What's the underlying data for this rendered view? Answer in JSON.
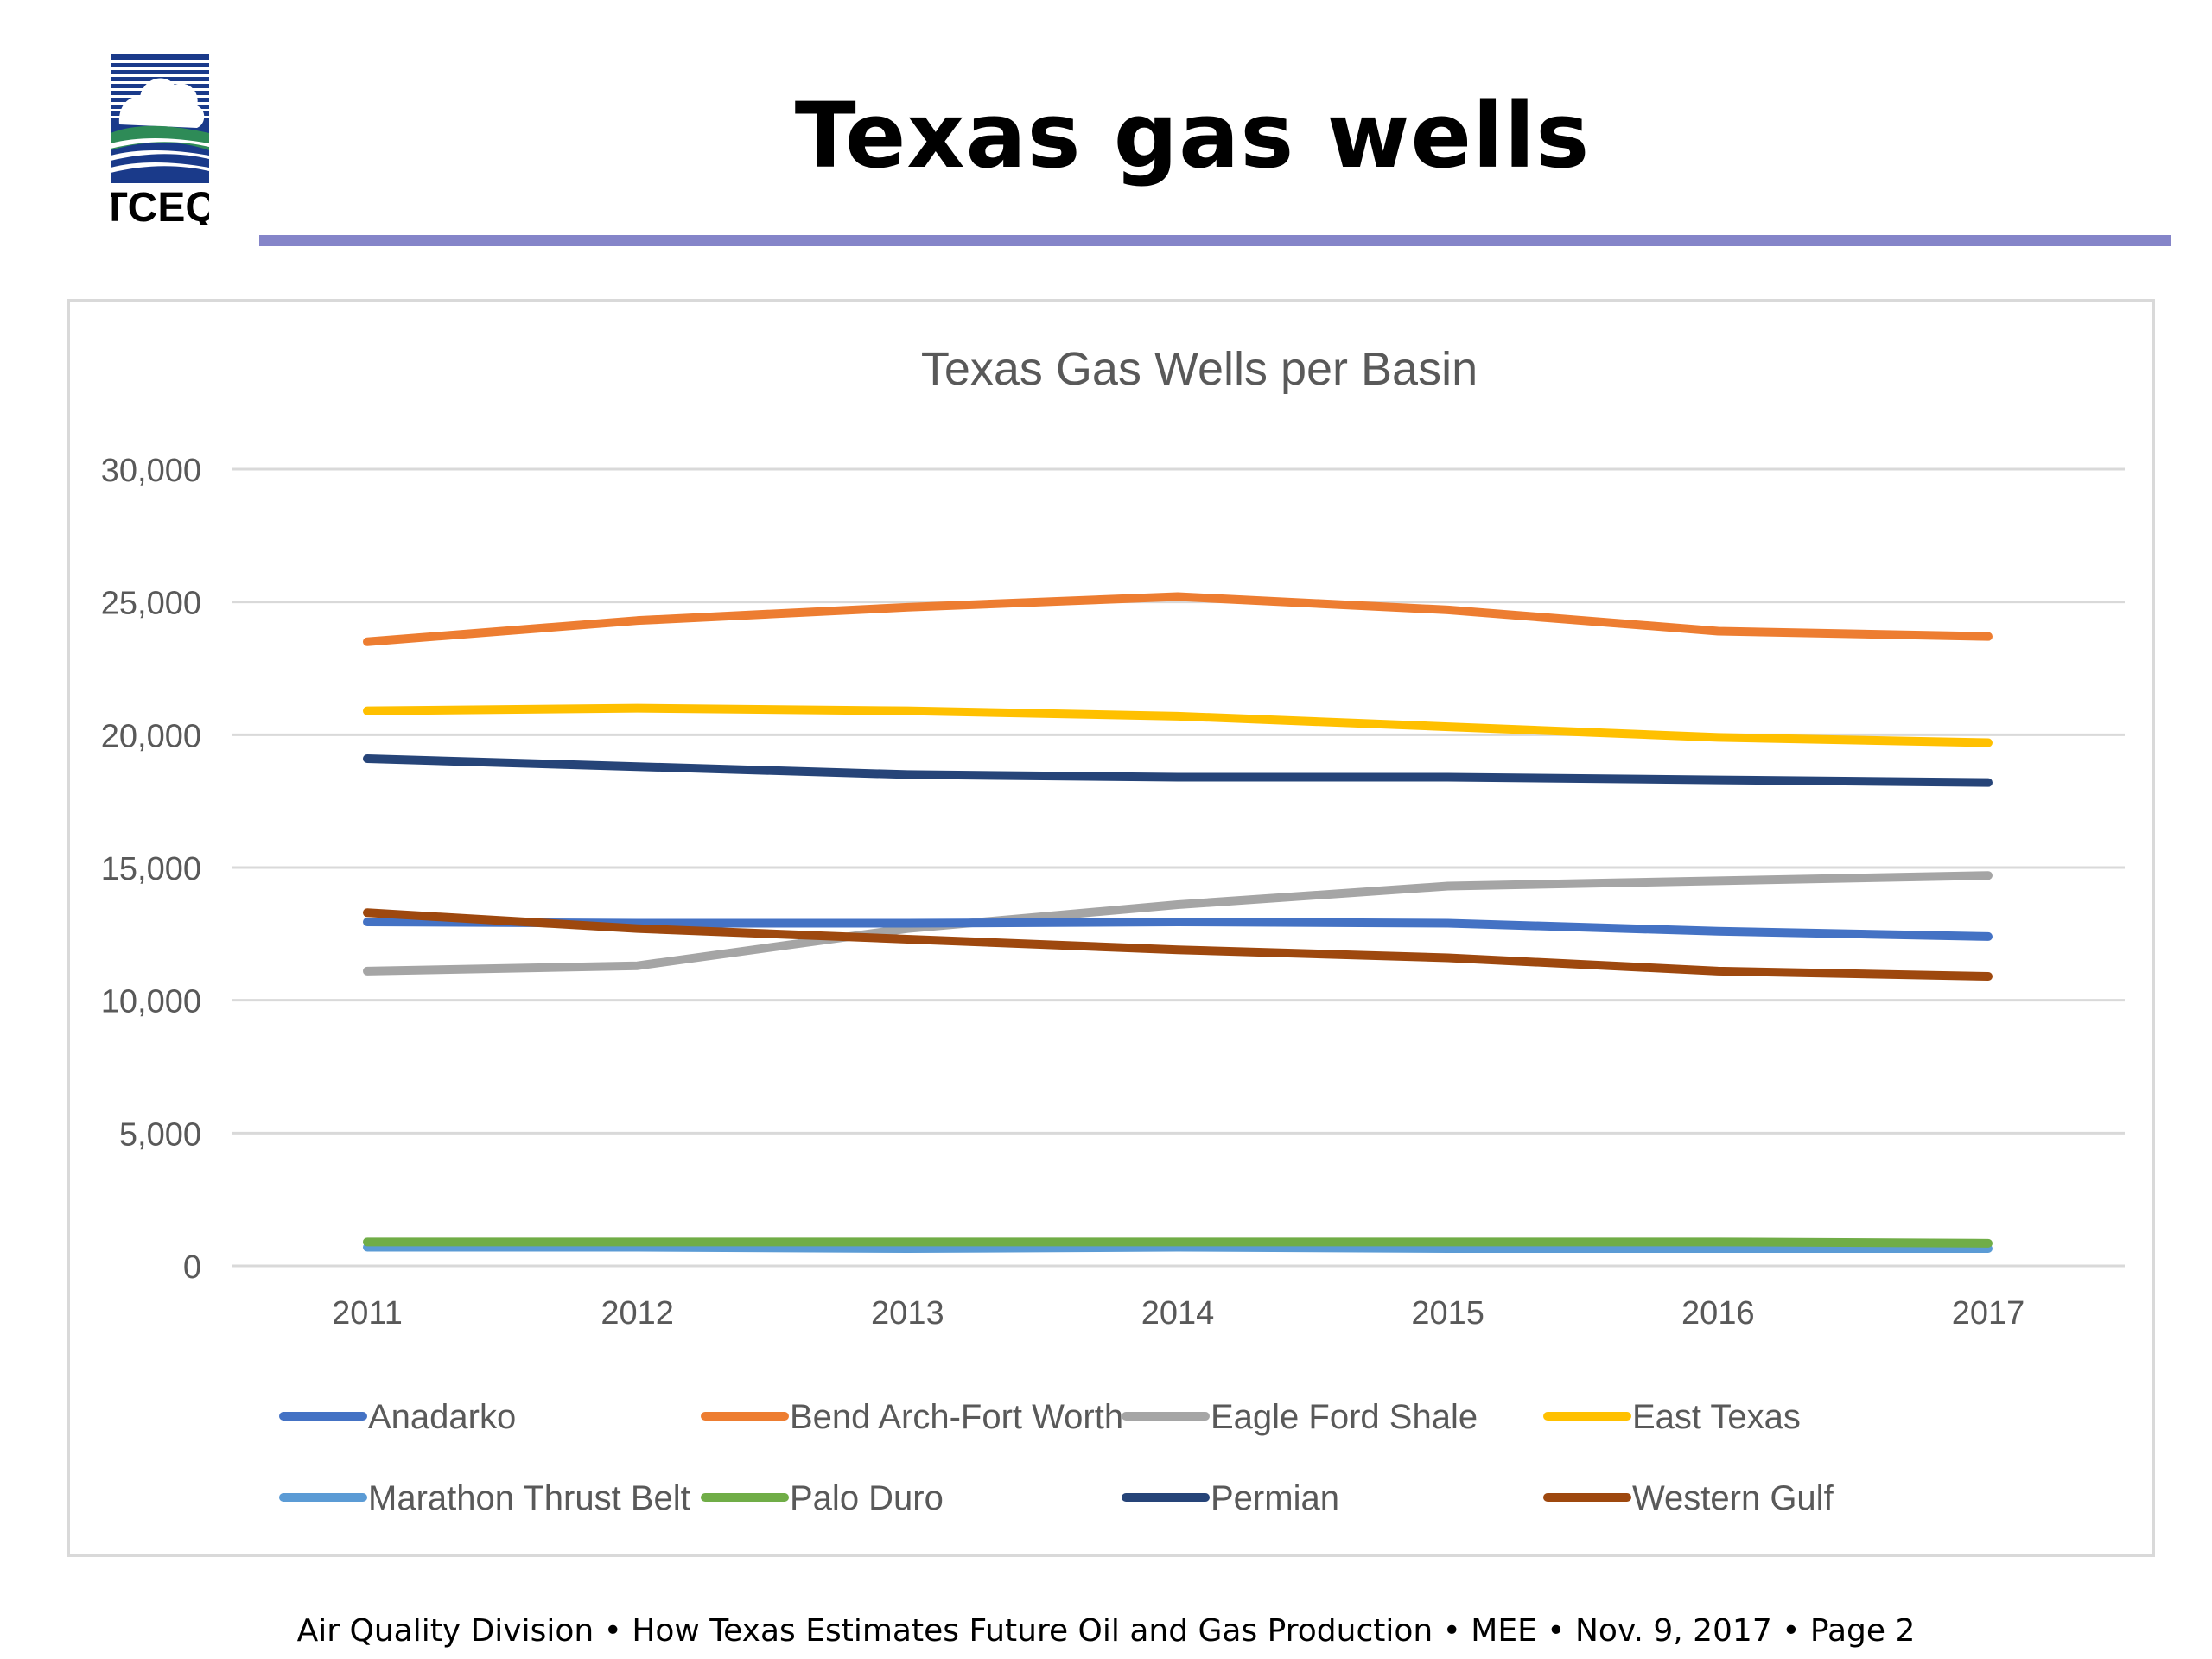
{
  "header": {
    "title": "Texas gas wells",
    "logo_text": "TCEQ",
    "rule_color": "#8585c9"
  },
  "footer": {
    "text": "Air Quality Division • How Texas Estimates Future Oil and Gas Production  • MEE •  Nov. 9, 2017  •   Page 2"
  },
  "chart_data": {
    "type": "line",
    "title": "Texas Gas Wells per Basin",
    "xlabel": "",
    "ylabel": "",
    "x": [
      "2011",
      "2012",
      "2013",
      "2014",
      "2015",
      "2016",
      "2017"
    ],
    "ylim": [
      0,
      30000
    ],
    "yticks": [
      "0",
      "5,000",
      "10,000",
      "15,000",
      "20,000",
      "25,000",
      "30,000"
    ],
    "grid": true,
    "legend_position": "bottom",
    "series": [
      {
        "name": "Anadarko",
        "color": "#4472c4",
        "values": [
          12950,
          12900,
          12900,
          12950,
          12900,
          12600,
          12400
        ]
      },
      {
        "name": "Bend Arch-Fort Worth",
        "color": "#ed7d31",
        "values": [
          23500,
          24300,
          24800,
          25200,
          24700,
          23900,
          23700
        ]
      },
      {
        "name": "Eagle Ford Shale",
        "color": "#a5a5a5",
        "values": [
          11100,
          11300,
          12700,
          13600,
          14300,
          14500,
          14700
        ]
      },
      {
        "name": "East Texas",
        "color": "#ffc000",
        "values": [
          20900,
          21000,
          20900,
          20700,
          20300,
          19900,
          19700
        ]
      },
      {
        "name": "Marathon Thrust Belt",
        "color": "#5b9bd5",
        "values": [
          700,
          700,
          650,
          700,
          650,
          650,
          650
        ]
      },
      {
        "name": "Palo Duro",
        "color": "#70ad47",
        "values": [
          900,
          900,
          900,
          900,
          900,
          900,
          850
        ]
      },
      {
        "name": "Permian",
        "color": "#264478",
        "values": [
          19100,
          18800,
          18500,
          18400,
          18400,
          18300,
          18200
        ]
      },
      {
        "name": "Western Gulf",
        "color": "#9e480e",
        "values": [
          13300,
          12700,
          12300,
          11900,
          11600,
          11100,
          10900
        ]
      }
    ]
  }
}
